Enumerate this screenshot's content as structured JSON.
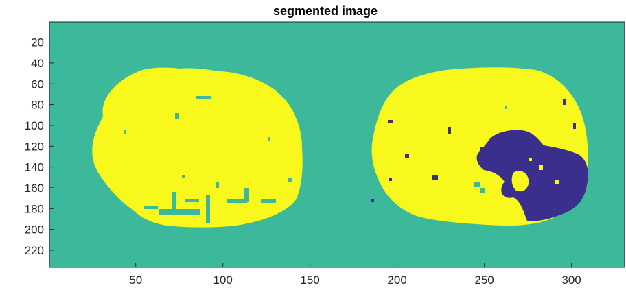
{
  "figure": {
    "title": "segmented image"
  },
  "image_axes": {
    "x_ticks": [
      "50",
      "100",
      "150",
      "200",
      "250",
      "300"
    ],
    "y_ticks": [
      "20",
      "40",
      "60",
      "80",
      "100",
      "120",
      "140",
      "160",
      "180",
      "200",
      "220"
    ],
    "x_tick_values": [
      50,
      100,
      150,
      200,
      250,
      300
    ],
    "y_tick_values": [
      20,
      40,
      60,
      80,
      100,
      120,
      140,
      160,
      180,
      200,
      220
    ],
    "xlim": [
      0.5,
      330.5
    ],
    "ylim": [
      0.5,
      236.5
    ],
    "y_direction": "reversed"
  },
  "colors": {
    "background": "#3cb99b",
    "brain": "#f8f81c",
    "lesion": "#3a2f8c"
  },
  "regions": [
    {
      "name": "left-brain-region",
      "label_color": "brain"
    },
    {
      "name": "right-brain-region",
      "label_color": "brain"
    },
    {
      "name": "lesion-region",
      "label_color": "lesion"
    }
  ]
}
